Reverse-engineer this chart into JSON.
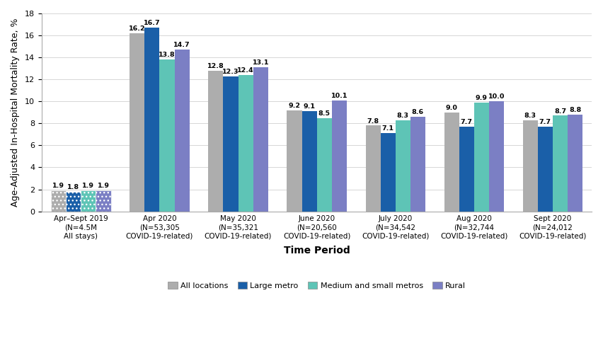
{
  "categories": [
    "Apr–Sept 2019\n(N=4.5M\nAll stays)",
    "Apr 2020\n(N=53,305\nCOVID-19-related)",
    "May 2020\n(N=35,321\nCOVID-19-related)",
    "June 2020\n(N=20,560\nCOVID-19-related)",
    "July 2020\n(N=34,542\nCOVID-19-related)",
    "Aug 2020\n(N=32,744\nCOVID-19-related)",
    "Sept 2020\n(N=24,012\nCOVID-19-related)"
  ],
  "series": {
    "All locations": [
      1.9,
      16.2,
      12.8,
      9.2,
      7.8,
      9.0,
      8.3
    ],
    "Large metro": [
      1.8,
      16.7,
      12.3,
      9.1,
      7.1,
      7.7,
      7.7
    ],
    "Medium and small metros": [
      1.9,
      13.8,
      12.4,
      8.5,
      8.3,
      9.9,
      8.7
    ],
    "Rural": [
      1.9,
      14.7,
      13.1,
      10.1,
      8.6,
      10.0,
      8.8
    ]
  },
  "colors": {
    "All locations": "#adadad",
    "Large metro": "#1a5fa8",
    "Medium and small metros": "#5ec4b6",
    "Rural": "#7b7fc4"
  },
  "ylabel": "Age-Adjusted In-Hospital Mortality Rate, %",
  "xlabel": "Time Period",
  "ylim": [
    0,
    18
  ],
  "yticks": [
    0,
    2,
    4,
    6,
    8,
    10,
    12,
    14,
    16,
    18
  ],
  "bar_width": 0.19,
  "legend_order": [
    "All locations",
    "Large metro",
    "Medium and small metros",
    "Rural"
  ],
  "value_fontsize": 6.8,
  "label_fontsize": 7.5,
  "axis_label_fontsize": 9,
  "xlabel_fontsize": 10
}
